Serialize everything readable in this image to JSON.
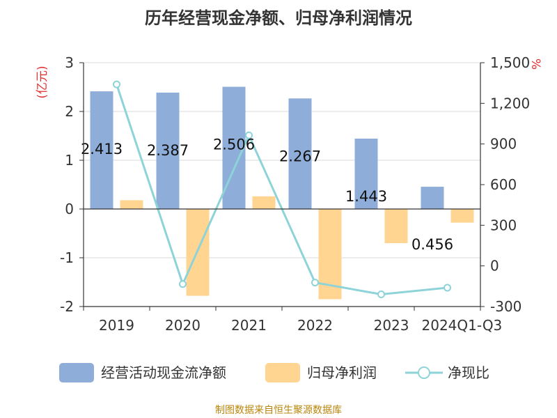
{
  "title": "历年经营现金净额、归母净利润情况",
  "source": "制图数据来自恒生聚源数据库",
  "chart_data": {
    "type": "bar",
    "categories": [
      "2019",
      "2020",
      "2021",
      "2022",
      "2023",
      "2024Q1-Q3"
    ],
    "series": [
      {
        "name": "经营活动现金流净额",
        "type": "bar",
        "axis": "left",
        "color": "#8eadd8",
        "values": [
          2.413,
          2.387,
          2.506,
          2.267,
          1.443,
          0.456
        ],
        "labels": [
          "2.413",
          "2.387",
          "2.506",
          "2.267",
          "1.443",
          "0.456"
        ]
      },
      {
        "name": "归母净利润",
        "type": "bar",
        "axis": "left",
        "color": "#ffd591",
        "values": [
          0.18,
          -1.78,
          0.26,
          -1.85,
          -0.7,
          -0.28
        ]
      },
      {
        "name": "净现比",
        "type": "line",
        "axis": "right",
        "color": "#8dd3d8",
        "values": [
          1340,
          -134,
          964,
          -123,
          -210,
          -161
        ]
      }
    ],
    "y_left": {
      "label": "(亿元)",
      "min": -2,
      "max": 3,
      "ticks": [
        "3",
        "2",
        "1",
        "0",
        "-1",
        "-2"
      ]
    },
    "y_right": {
      "label": "%",
      "min": -300,
      "max": 1500,
      "ticks": [
        "1,500",
        "1,200",
        "900",
        "600",
        "300",
        "0",
        "-300"
      ]
    },
    "grid": true,
    "legend": "bottom"
  }
}
